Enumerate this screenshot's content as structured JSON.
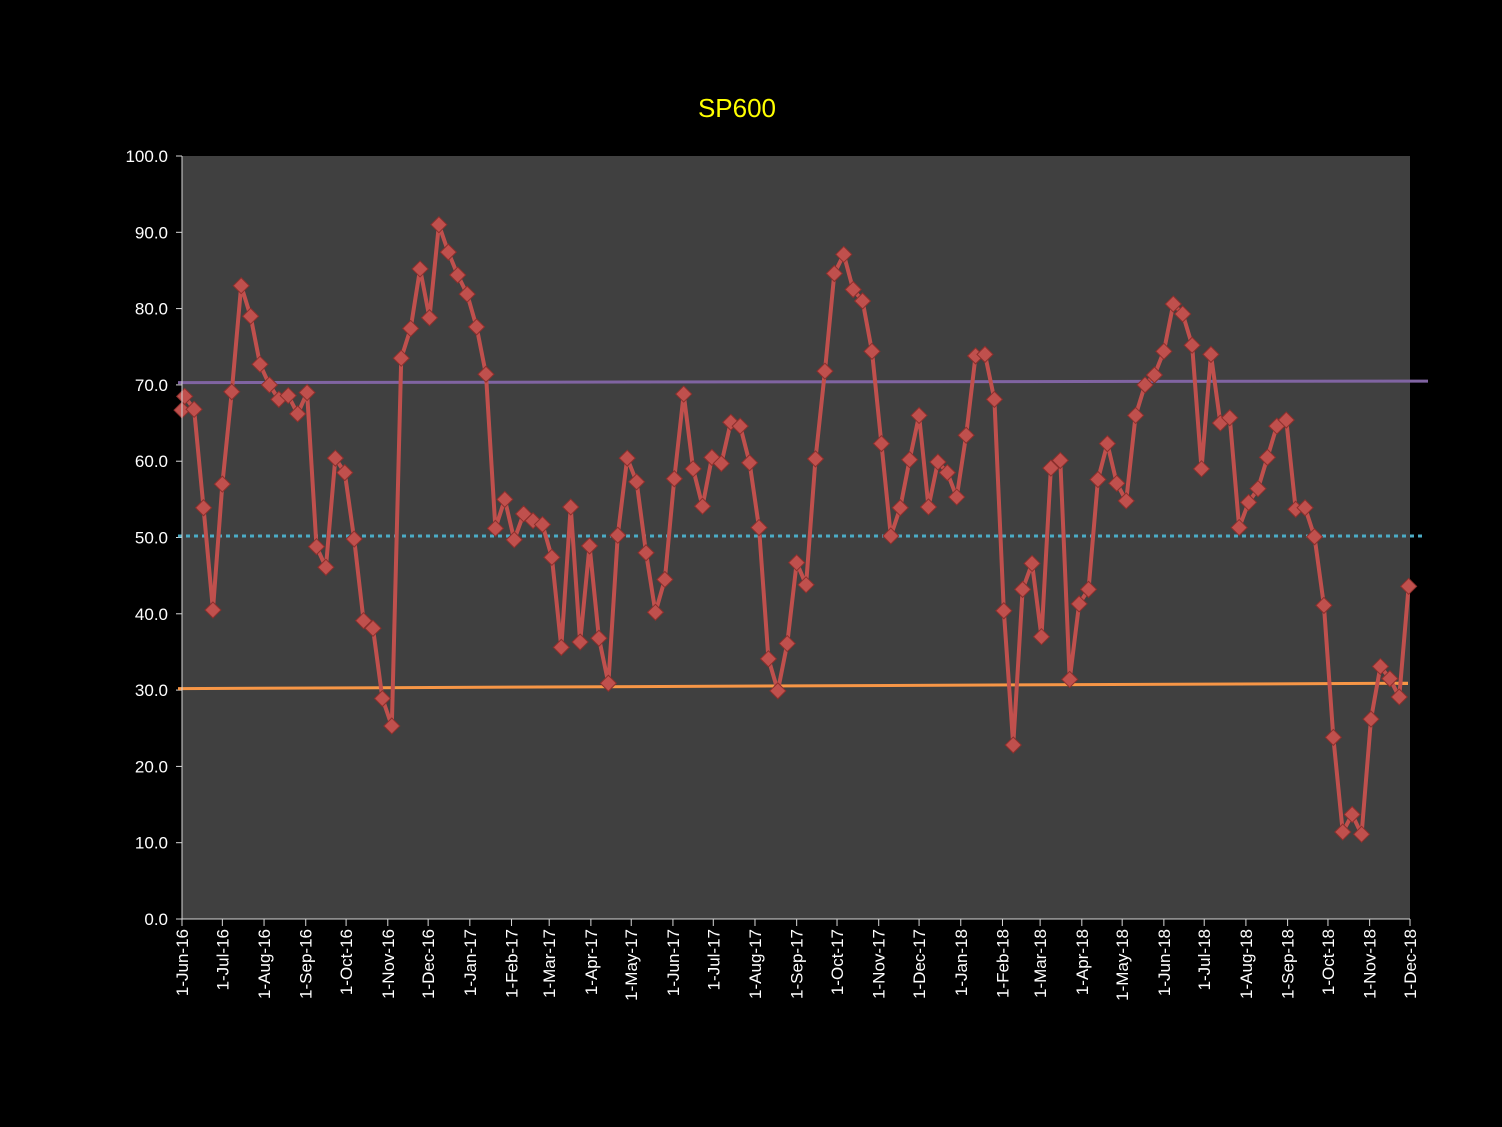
{
  "colors": {
    "background": "#000000",
    "plot_area": "#404040",
    "axis": "#d9d9d9",
    "title": "#ffff00",
    "series": "#c0504d",
    "marker": "#c0504d",
    "upper_line": "#8064a2",
    "mid_line": "#4bacc6",
    "lower_line": "#f79646"
  },
  "chart_data": {
    "type": "line",
    "title": "SP600",
    "xlabel": "",
    "ylabel": "",
    "ylim": [
      0,
      100
    ],
    "yticks": [
      "0.0",
      "10.0",
      "20.0",
      "30.0",
      "40.0",
      "50.0",
      "60.0",
      "70.0",
      "80.0",
      "90.0",
      "100.0"
    ],
    "xrange": [
      "2016-06-01",
      "2018-12-01"
    ],
    "xticks": [
      {
        "date": "2016-06-01",
        "label": "1-Jun-16"
      },
      {
        "date": "2016-07-01",
        "label": "1-Jul-16"
      },
      {
        "date": "2016-08-01",
        "label": "1-Aug-16"
      },
      {
        "date": "2016-09-01",
        "label": "1-Sep-16"
      },
      {
        "date": "2016-10-01",
        "label": "1-Oct-16"
      },
      {
        "date": "2016-11-01",
        "label": "1-Nov-16"
      },
      {
        "date": "2016-12-01",
        "label": "1-Dec-16"
      },
      {
        "date": "2017-01-01",
        "label": "1-Jan-17"
      },
      {
        "date": "2017-02-01",
        "label": "1-Feb-17"
      },
      {
        "date": "2017-03-01",
        "label": "1-Mar-17"
      },
      {
        "date": "2017-04-01",
        "label": "1-Apr-17"
      },
      {
        "date": "2017-05-01",
        "label": "1-May-17"
      },
      {
        "date": "2017-06-01",
        "label": "1-Jun-17"
      },
      {
        "date": "2017-07-01",
        "label": "1-Jul-17"
      },
      {
        "date": "2017-08-01",
        "label": "1-Aug-17"
      },
      {
        "date": "2017-09-01",
        "label": "1-Sep-17"
      },
      {
        "date": "2017-10-01",
        "label": "1-Oct-17"
      },
      {
        "date": "2017-11-01",
        "label": "1-Nov-17"
      },
      {
        "date": "2017-12-01",
        "label": "1-Dec-17"
      },
      {
        "date": "2018-01-01",
        "label": "1-Jan-18"
      },
      {
        "date": "2018-02-01",
        "label": "1-Feb-18"
      },
      {
        "date": "2018-03-01",
        "label": "1-Mar-18"
      },
      {
        "date": "2018-04-01",
        "label": "1-Apr-18"
      },
      {
        "date": "2018-05-01",
        "label": "1-May-18"
      },
      {
        "date": "2018-06-01",
        "label": "1-Jun-18"
      },
      {
        "date": "2018-07-01",
        "label": "1-Jul-18"
      },
      {
        "date": "2018-08-01",
        "label": "1-Aug-18"
      },
      {
        "date": "2018-09-01",
        "label": "1-Sep-18"
      },
      {
        "date": "2018-10-01",
        "label": "1-Oct-18"
      },
      {
        "date": "2018-11-01",
        "label": "1-Nov-18"
      },
      {
        "date": "2018-12-01",
        "label": "1-Dec-18"
      }
    ],
    "series": [
      {
        "x": [
          "2016-06-01",
          "2016-06-03",
          "2016-06-10",
          "2016-06-17",
          "2016-06-24",
          "2016-07-01",
          "2016-07-08",
          "2016-07-15",
          "2016-07-22",
          "2016-07-29",
          "2016-08-05",
          "2016-08-12",
          "2016-08-19",
          "2016-08-26",
          "2016-09-02",
          "2016-09-09",
          "2016-09-16",
          "2016-09-23",
          "2016-09-30",
          "2016-10-07",
          "2016-10-14",
          "2016-10-21",
          "2016-10-28",
          "2016-11-04",
          "2016-11-11",
          "2016-11-18",
          "2016-11-25",
          "2016-12-02",
          "2016-12-09",
          "2016-12-16",
          "2016-12-23",
          "2016-12-30",
          "2017-01-06",
          "2017-01-13",
          "2017-01-20",
          "2017-01-27",
          "2017-02-03",
          "2017-02-10",
          "2017-02-17",
          "2017-02-24",
          "2017-03-03",
          "2017-03-10",
          "2017-03-17",
          "2017-03-24",
          "2017-03-31",
          "2017-04-07",
          "2017-04-14",
          "2017-04-21",
          "2017-04-28",
          "2017-05-05",
          "2017-05-12",
          "2017-05-19",
          "2017-05-26",
          "2017-06-02",
          "2017-06-09",
          "2017-06-16",
          "2017-06-23",
          "2017-06-30",
          "2017-07-07",
          "2017-07-14",
          "2017-07-21",
          "2017-07-28",
          "2017-08-04",
          "2017-08-11",
          "2017-08-18",
          "2017-08-25",
          "2017-09-01",
          "2017-09-08",
          "2017-09-15",
          "2017-09-22",
          "2017-09-29",
          "2017-10-06",
          "2017-10-13",
          "2017-10-20",
          "2017-10-27",
          "2017-11-03",
          "2017-11-10",
          "2017-11-17",
          "2017-11-24",
          "2017-12-01",
          "2017-12-08",
          "2017-12-15",
          "2017-12-22",
          "2017-12-29",
          "2018-01-05",
          "2018-01-12",
          "2018-01-19",
          "2018-01-26",
          "2018-02-02",
          "2018-02-09",
          "2018-02-16",
          "2018-02-23",
          "2018-03-02",
          "2018-03-09",
          "2018-03-16",
          "2018-03-23",
          "2018-03-30",
          "2018-04-06",
          "2018-04-13",
          "2018-04-20",
          "2018-04-27",
          "2018-05-04",
          "2018-05-11",
          "2018-05-18",
          "2018-05-25",
          "2018-06-01",
          "2018-06-08",
          "2018-06-15",
          "2018-06-22",
          "2018-06-29",
          "2018-07-06",
          "2018-07-13",
          "2018-07-20",
          "2018-07-27",
          "2018-08-03",
          "2018-08-10",
          "2018-08-17",
          "2018-08-24",
          "2018-08-31",
          "2018-09-07",
          "2018-09-14",
          "2018-09-21",
          "2018-09-28",
          "2018-10-05",
          "2018-10-12",
          "2018-10-19",
          "2018-10-26",
          "2018-11-02",
          "2018-11-09",
          "2018-11-16",
          "2018-11-23",
          "2018-11-30"
        ],
        "values": [
          66.7,
          68.5,
          66.8,
          53.9,
          40.5,
          57.0,
          69.1,
          83.0,
          79.0,
          72.7,
          70.0,
          68.1,
          68.6,
          66.2,
          69.0,
          48.8,
          46.1,
          60.4,
          58.5,
          49.8,
          39.1,
          38.1,
          28.9,
          25.3,
          73.5,
          77.4,
          85.2,
          78.8,
          91.0,
          87.4,
          84.4,
          81.9,
          77.6,
          71.4,
          51.2,
          55.0,
          49.7,
          53.1,
          52.2,
          51.7,
          47.4,
          35.6,
          54.0,
          36.3,
          48.9,
          36.8,
          30.9,
          50.3,
          60.4,
          57.3,
          48.0,
          40.2,
          44.5,
          57.7,
          68.8,
          59.0,
          54.1,
          60.5,
          59.7,
          65.1,
          64.6,
          59.8,
          51.3,
          34.1,
          29.9,
          36.1,
          46.7,
          43.8,
          60.3,
          71.8,
          84.6,
          87.1,
          82.5,
          81.0,
          74.4,
          62.3,
          50.2,
          53.9,
          60.2,
          66.0,
          54.0,
          59.9,
          58.5,
          55.3,
          63.4,
          73.8,
          74.0,
          68.1,
          40.4,
          22.8,
          43.2,
          46.6,
          37.0,
          59.1,
          60.1,
          31.4,
          41.3,
          43.2,
          57.6,
          62.3,
          57.1,
          54.8,
          66.0,
          70.0,
          71.3,
          74.4,
          80.6,
          79.3,
          75.2,
          59.0,
          74.0,
          65.0,
          65.7,
          51.3,
          54.6,
          56.4,
          60.5,
          64.6,
          65.4,
          53.7,
          53.9,
          50.1,
          41.1,
          23.8,
          11.4,
          13.7,
          11.1,
          26.2,
          33.1,
          31.5,
          29.1,
          43.6
        ]
      }
    ],
    "reference_lines": [
      {
        "start": 70.3,
        "end": 70.5
      },
      {
        "start": 50.2,
        "end": 50.2
      },
      {
        "start": 30.2,
        "end": 30.9
      }
    ],
    "grid": false,
    "legend": "none"
  }
}
